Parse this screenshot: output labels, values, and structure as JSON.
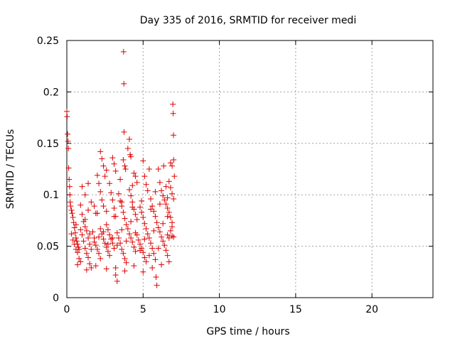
{
  "chart_data": {
    "type": "scatter",
    "title": "Day 335 of 2016, SRMTID for receiver medi",
    "xlabel": "GPS time / hours",
    "ylabel": "SRMTID / TECUs",
    "xlim": [
      0,
      24
    ],
    "ylim": [
      0,
      0.25
    ],
    "xticks": [
      0,
      5,
      10,
      15,
      20
    ],
    "xtick_labels": [
      "0",
      "5",
      "10",
      "15",
      "20"
    ],
    "yticks": [
      0,
      0.05,
      0.1,
      0.15,
      0.2,
      0.25
    ],
    "ytick_labels": [
      "0",
      "0.05",
      "0.1",
      "0.15",
      "0.2",
      "0.25"
    ],
    "grid": true,
    "marker": "+",
    "series": [
      {
        "name": "SRMTID",
        "color": "#dd0000",
        "points": [
          [
            0.0,
            0.181
          ],
          [
            0.02,
            0.176
          ],
          [
            0.05,
            0.159
          ],
          [
            0.08,
            0.152
          ],
          [
            0.1,
            0.145
          ],
          [
            0.12,
            0.126
          ],
          [
            0.15,
            0.115
          ],
          [
            0.18,
            0.108
          ],
          [
            0.2,
            0.1
          ],
          [
            0.22,
            0.093
          ],
          [
            0.25,
            0.089
          ],
          [
            0.3,
            0.085
          ],
          [
            0.35,
            0.082
          ],
          [
            0.4,
            0.078
          ],
          [
            0.45,
            0.073
          ],
          [
            0.5,
            0.068
          ],
          [
            0.55,
            0.063
          ],
          [
            0.6,
            0.058
          ],
          [
            0.65,
            0.055
          ],
          [
            0.7,
            0.052
          ],
          [
            0.75,
            0.049
          ],
          [
            0.8,
            0.047
          ],
          [
            0.3,
            0.062
          ],
          [
            0.4,
            0.056
          ],
          [
            0.5,
            0.052
          ],
          [
            0.6,
            0.047
          ],
          [
            0.7,
            0.044
          ],
          [
            0.8,
            0.038
          ],
          [
            0.9,
            0.035
          ],
          [
            1.0,
            0.061
          ],
          [
            1.1,
            0.055
          ],
          [
            1.2,
            0.048
          ],
          [
            1.3,
            0.043
          ],
          [
            1.4,
            0.039
          ],
          [
            1.5,
            0.033
          ],
          [
            1.6,
            0.029
          ],
          [
            1.0,
            0.081
          ],
          [
            1.1,
            0.074
          ],
          [
            1.2,
            0.069
          ],
          [
            1.3,
            0.065
          ],
          [
            1.4,
            0.058
          ],
          [
            1.5,
            0.052
          ],
          [
            1.6,
            0.047
          ],
          [
            1.0,
            0.108
          ],
          [
            1.2,
            0.1
          ],
          [
            1.4,
            0.111
          ],
          [
            1.6,
            0.093
          ],
          [
            1.8,
            0.089
          ],
          [
            1.9,
            0.082
          ],
          [
            1.7,
            0.064
          ],
          [
            1.8,
            0.058
          ],
          [
            1.9,
            0.051
          ],
          [
            2.0,
            0.047
          ],
          [
            2.1,
            0.043
          ],
          [
            2.2,
            0.038
          ],
          [
            2.0,
            0.119
          ],
          [
            2.1,
            0.111
          ],
          [
            2.2,
            0.103
          ],
          [
            2.3,
            0.095
          ],
          [
            2.4,
            0.089
          ],
          [
            2.2,
            0.067
          ],
          [
            2.3,
            0.062
          ],
          [
            2.4,
            0.057
          ],
          [
            2.5,
            0.053
          ],
          [
            2.6,
            0.049
          ],
          [
            2.7,
            0.045
          ],
          [
            2.8,
            0.041
          ],
          [
            2.2,
            0.142
          ],
          [
            2.3,
            0.135
          ],
          [
            2.4,
            0.128
          ],
          [
            2.5,
            0.118
          ],
          [
            2.6,
            0.071
          ],
          [
            2.7,
            0.066
          ],
          [
            2.8,
            0.061
          ],
          [
            2.9,
            0.057
          ],
          [
            3.0,
            0.053
          ],
          [
            3.1,
            0.048
          ],
          [
            3.2,
            0.022
          ],
          [
            3.3,
            0.016
          ],
          [
            2.8,
            0.111
          ],
          [
            2.9,
            0.102
          ],
          [
            3.0,
            0.095
          ],
          [
            3.1,
            0.087
          ],
          [
            3.2,
            0.079
          ],
          [
            3.0,
            0.136
          ],
          [
            3.1,
            0.13
          ],
          [
            3.2,
            0.123
          ],
          [
            3.3,
            0.063
          ],
          [
            3.4,
            0.058
          ],
          [
            3.5,
            0.053
          ],
          [
            3.6,
            0.047
          ],
          [
            3.7,
            0.043
          ],
          [
            3.8,
            0.038
          ],
          [
            3.9,
            0.034
          ],
          [
            3.4,
            0.101
          ],
          [
            3.5,
            0.094
          ],
          [
            3.6,
            0.089
          ],
          [
            3.7,
            0.083
          ],
          [
            3.8,
            0.077
          ],
          [
            3.7,
            0.134
          ],
          [
            3.75,
            0.161
          ],
          [
            3.8,
            0.128
          ],
          [
            3.85,
            0.125
          ],
          [
            3.72,
            0.239
          ],
          [
            3.74,
            0.208
          ],
          [
            4.0,
            0.145
          ],
          [
            4.1,
            0.154
          ],
          [
            4.15,
            0.139
          ],
          [
            4.2,
            0.137
          ],
          [
            3.9,
            0.071
          ],
          [
            4.0,
            0.067
          ],
          [
            4.1,
            0.062
          ],
          [
            4.2,
            0.058
          ],
          [
            4.3,
            0.054
          ],
          [
            4.4,
            0.049
          ],
          [
            4.5,
            0.045
          ],
          [
            4.1,
            0.105
          ],
          [
            4.2,
            0.099
          ],
          [
            4.3,
            0.093
          ],
          [
            4.4,
            0.086
          ],
          [
            4.5,
            0.081
          ],
          [
            4.6,
            0.076
          ],
          [
            4.4,
            0.121
          ],
          [
            4.5,
            0.118
          ],
          [
            4.6,
            0.112
          ],
          [
            4.6,
            0.061
          ],
          [
            4.7,
            0.056
          ],
          [
            4.8,
            0.052
          ],
          [
            4.9,
            0.048
          ],
          [
            5.0,
            0.044
          ],
          [
            5.1,
            0.039
          ],
          [
            5.2,
            0.035
          ],
          [
            4.8,
            0.088
          ],
          [
            4.9,
            0.083
          ],
          [
            5.0,
            0.078
          ],
          [
            5.1,
            0.072
          ],
          [
            5.2,
            0.067
          ],
          [
            5.0,
            0.133
          ],
          [
            5.1,
            0.118
          ],
          [
            5.2,
            0.11
          ],
          [
            5.3,
            0.104
          ],
          [
            5.4,
            0.125
          ],
          [
            5.5,
            0.096
          ],
          [
            5.3,
            0.062
          ],
          [
            5.4,
            0.058
          ],
          [
            5.5,
            0.053
          ],
          [
            5.6,
            0.048
          ],
          [
            5.7,
            0.043
          ],
          [
            5.8,
            0.037
          ],
          [
            5.85,
            0.02
          ],
          [
            5.9,
            0.012
          ],
          [
            5.6,
            0.089
          ],
          [
            5.7,
            0.084
          ],
          [
            5.8,
            0.079
          ],
          [
            5.9,
            0.073
          ],
          [
            6.0,
            0.125
          ],
          [
            6.1,
            0.112
          ],
          [
            6.2,
            0.104
          ],
          [
            6.3,
            0.099
          ],
          [
            6.35,
            0.128
          ],
          [
            6.0,
            0.068
          ],
          [
            6.1,
            0.064
          ],
          [
            6.2,
            0.059
          ],
          [
            6.3,
            0.055
          ],
          [
            6.4,
            0.051
          ],
          [
            6.5,
            0.046
          ],
          [
            6.6,
            0.041
          ],
          [
            6.4,
            0.095
          ],
          [
            6.5,
            0.091
          ],
          [
            6.6,
            0.087
          ],
          [
            6.7,
            0.083
          ],
          [
            6.8,
            0.078
          ],
          [
            6.9,
            0.073
          ],
          [
            6.6,
            0.061
          ],
          [
            6.7,
            0.058
          ],
          [
            6.8,
            0.065
          ],
          [
            6.9,
            0.06
          ],
          [
            7.0,
            0.059
          ],
          [
            6.8,
            0.131
          ],
          [
            6.9,
            0.128
          ],
          [
            7.0,
            0.134
          ],
          [
            7.05,
            0.118
          ],
          [
            6.95,
            0.188
          ],
          [
            6.97,
            0.179
          ],
          [
            6.99,
            0.158
          ],
          [
            6.7,
            0.113
          ],
          [
            6.8,
            0.107
          ],
          [
            6.9,
            0.101
          ],
          [
            7.0,
            0.096
          ],
          [
            0.6,
            0.071
          ],
          [
            0.9,
            0.066
          ],
          [
            1.2,
            0.076
          ],
          [
            1.5,
            0.062
          ],
          [
            1.8,
            0.054
          ],
          [
            2.1,
            0.059
          ],
          [
            2.4,
            0.064
          ],
          [
            2.7,
            0.052
          ],
          [
            3.0,
            0.058
          ],
          [
            3.3,
            0.051
          ],
          [
            3.6,
            0.066
          ],
          [
            3.9,
            0.055
          ],
          [
            4.2,
            0.074
          ],
          [
            4.5,
            0.063
          ],
          [
            4.8,
            0.046
          ],
          [
            5.1,
            0.057
          ],
          [
            5.4,
            0.041
          ],
          [
            5.7,
            0.065
          ],
          [
            6.0,
            0.048
          ],
          [
            6.3,
            0.072
          ],
          [
            6.6,
            0.079
          ],
          [
            6.9,
            0.069
          ],
          [
            0.7,
            0.032
          ],
          [
            1.3,
            0.027
          ],
          [
            1.9,
            0.031
          ],
          [
            2.6,
            0.028
          ],
          [
            3.2,
            0.029
          ],
          [
            3.8,
            0.026
          ],
          [
            4.4,
            0.031
          ],
          [
            5.0,
            0.025
          ],
          [
            5.6,
            0.029
          ],
          [
            6.2,
            0.032
          ],
          [
            6.7,
            0.035
          ],
          [
            0.9,
            0.09
          ],
          [
            1.4,
            0.085
          ],
          [
            2.0,
            0.082
          ],
          [
            2.6,
            0.084
          ],
          [
            3.1,
            0.079
          ],
          [
            3.6,
            0.093
          ],
          [
            4.3,
            0.088
          ],
          [
            4.9,
            0.094
          ],
          [
            5.5,
            0.086
          ],
          [
            6.1,
            0.091
          ],
          [
            6.6,
            0.097
          ],
          [
            2.6,
            0.124
          ],
          [
            3.5,
            0.115
          ],
          [
            4.3,
            0.109
          ],
          [
            5.8,
            0.103
          ],
          [
            6.5,
            0.108
          ]
        ]
      }
    ]
  }
}
